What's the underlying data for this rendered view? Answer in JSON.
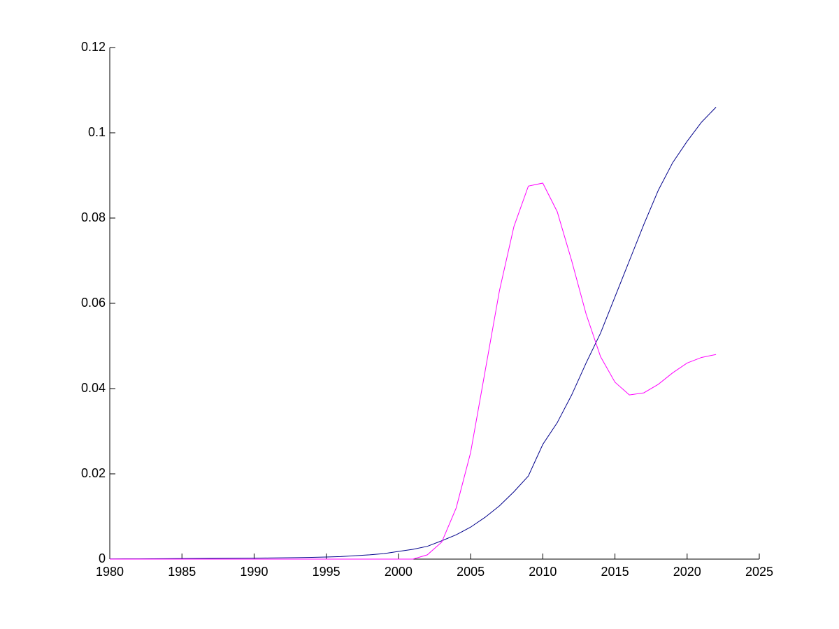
{
  "chart_data": {
    "type": "line",
    "x": [
      1980,
      1981,
      1982,
      1983,
      1984,
      1985,
      1986,
      1987,
      1988,
      1989,
      1990,
      1991,
      1992,
      1993,
      1994,
      1995,
      1996,
      1997,
      1998,
      1999,
      2000,
      2001,
      2002,
      2003,
      2004,
      2005,
      2006,
      2007,
      2008,
      2009,
      2010,
      2011,
      2012,
      2013,
      2014,
      2015,
      2016,
      2017,
      2018,
      2019,
      2020,
      2021,
      2022
    ],
    "series": [
      {
        "color": "#00008b",
        "values": [
          5e-05,
          6e-05,
          7e-05,
          8e-05,
          0.0001,
          0.00012,
          0.00014,
          0.00016,
          0.00018,
          0.0002,
          0.00023,
          0.00026,
          0.0003,
          0.00035,
          0.0004,
          0.0005,
          0.0006,
          0.0008,
          0.001,
          0.0013,
          0.0018,
          0.0023,
          0.003,
          0.0043,
          0.0057,
          0.0075,
          0.0098,
          0.0125,
          0.0158,
          0.0195,
          0.0269,
          0.032,
          0.0385,
          0.046,
          0.053,
          0.0615,
          0.07,
          0.0785,
          0.0865,
          0.093,
          0.098,
          0.1025,
          0.106
        ]
      },
      {
        "color": "#ff00ff",
        "values": [
          0,
          0,
          0,
          0,
          0,
          0,
          0,
          0,
          0,
          0,
          0,
          0,
          0,
          0,
          0,
          0,
          0,
          0,
          0,
          0,
          0,
          0,
          0.001,
          0.004,
          0.012,
          0.025,
          0.044,
          0.063,
          0.078,
          0.0875,
          0.0882,
          0.0815,
          0.07,
          0.0575,
          0.0475,
          0.0415,
          0.0385,
          0.039,
          0.041,
          0.0437,
          0.046,
          0.0473,
          0.048
        ]
      }
    ],
    "xlim": [
      1980,
      2025
    ],
    "xticks": [
      1980,
      1985,
      1990,
      1995,
      2000,
      2005,
      2010,
      2015,
      2020,
      2025
    ],
    "ylim": [
      0,
      0.12
    ],
    "yticks": [
      0,
      0.02,
      0.04,
      0.06,
      0.08,
      0.1,
      0.12
    ]
  }
}
